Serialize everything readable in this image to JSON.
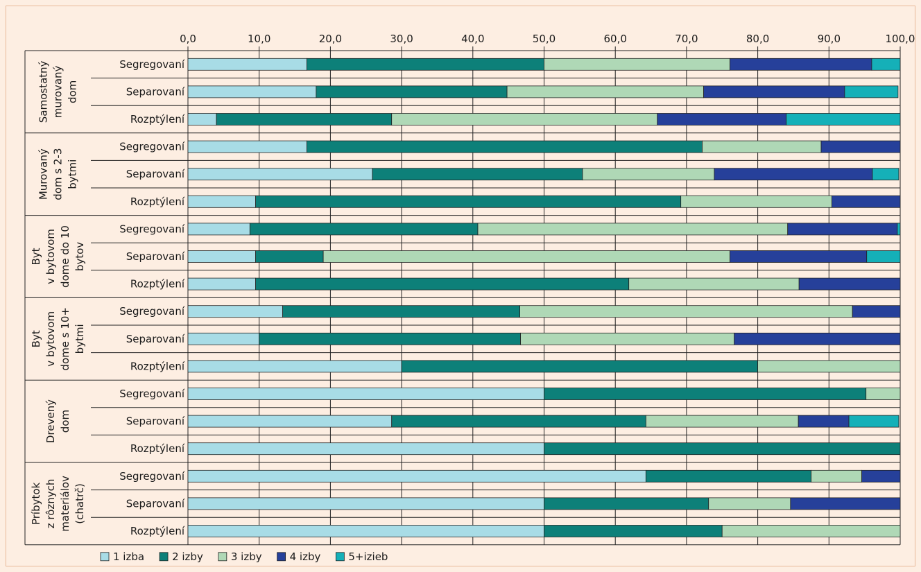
{
  "colors": {
    "background": "#fdeee2",
    "grid": "#222222",
    "series": [
      "#a8dce6",
      "#0d8079",
      "#afd8b6",
      "#26409a",
      "#15b0b8"
    ]
  },
  "chart_data": {
    "type": "bar",
    "orientation": "horizontal",
    "stacked": true,
    "xlim": [
      0,
      100
    ],
    "x_ticks": [
      "0,0",
      "10,0",
      "20,0",
      "30,0",
      "40,0",
      "50,0",
      "60,0",
      "70,0",
      "80,0",
      "90,0",
      "100,0"
    ],
    "x_tick_values": [
      0,
      10,
      20,
      30,
      40,
      50,
      60,
      70,
      80,
      90,
      100
    ],
    "grid": true,
    "legend_position": "bottom-left",
    "legend": [
      "1 izba",
      "2 izby",
      "3 izby",
      "4 izby",
      "5+izieb"
    ],
    "groups": [
      {
        "label_lines": [
          "Samostatný",
          "murovaný",
          "dom"
        ],
        "rows": [
          {
            "label": "Segregovaní",
            "values": [
              16.7,
              33.3,
              26.1,
              19.9,
              4.0
            ]
          },
          {
            "label": "Separovaní",
            "values": [
              18.0,
              26.8,
              27.6,
              19.8,
              7.5
            ]
          },
          {
            "label": "Rozptýlení",
            "values": [
              4.0,
              24.6,
              37.3,
              18.1,
              16.0
            ]
          }
        ]
      },
      {
        "label_lines": [
          "Murovaný",
          "dom s 2-3",
          "bytmi"
        ],
        "rows": [
          {
            "label": "Segregovaní",
            "values": [
              16.7,
              55.5,
              16.7,
              11.1,
              0
            ]
          },
          {
            "label": "Separovaní",
            "values": [
              25.9,
              29.5,
              18.5,
              22.2,
              3.7
            ]
          },
          {
            "label": "Rozptýlení",
            "values": [
              9.5,
              59.7,
              21.2,
              9.6,
              0
            ]
          }
        ]
      },
      {
        "label_lines": [
          "Byt",
          "v bytovom",
          "dome do 10",
          "bytov"
        ],
        "rows": [
          {
            "label": "Segregovaní",
            "values": [
              8.7,
              32.0,
              43.5,
              15.4,
              0.4
            ]
          },
          {
            "label": "Separovaní",
            "values": [
              9.5,
              9.5,
              57.1,
              19.2,
              4.7
            ]
          },
          {
            "label": "Rozptýlení",
            "values": [
              9.5,
              52.4,
              23.9,
              14.2,
              0
            ]
          }
        ]
      },
      {
        "label_lines": [
          "Byt",
          "v bytovom",
          "dome s 10+",
          "bytmi"
        ],
        "rows": [
          {
            "label": "Segregovaní",
            "values": [
              13.3,
              33.3,
              46.7,
              6.7,
              0
            ]
          },
          {
            "label": "Separovaní",
            "values": [
              10.0,
              36.7,
              30.0,
              23.3,
              0
            ]
          },
          {
            "label": "Rozptýlení",
            "values": [
              30.0,
              50.0,
              20.0,
              0,
              0
            ]
          }
        ]
      },
      {
        "label_lines": [
          "Drevený",
          "dom"
        ],
        "rows": [
          {
            "label": "Segregovaní",
            "values": [
              50.0,
              45.2,
              4.8,
              0,
              0
            ]
          },
          {
            "label": "Separovaní",
            "values": [
              28.6,
              35.7,
              21.4,
              7.1,
              7.0
            ]
          },
          {
            "label": "Rozptýlení",
            "values": [
              50.0,
              50.0,
              0,
              0,
              0
            ]
          }
        ]
      },
      {
        "label_lines": [
          "Príbytok",
          "z rôznych",
          "materiálov",
          "(chatrč)"
        ],
        "rows": [
          {
            "label": "Segregovaní",
            "values": [
              64.3,
              23.2,
              7.1,
              5.4,
              0
            ]
          },
          {
            "label": "Separovaní",
            "values": [
              50.0,
              23.1,
              11.5,
              15.4,
              0
            ]
          },
          {
            "label": "Rozptýlení",
            "values": [
              50.0,
              25.0,
              25.0,
              0,
              0
            ]
          }
        ]
      }
    ]
  }
}
